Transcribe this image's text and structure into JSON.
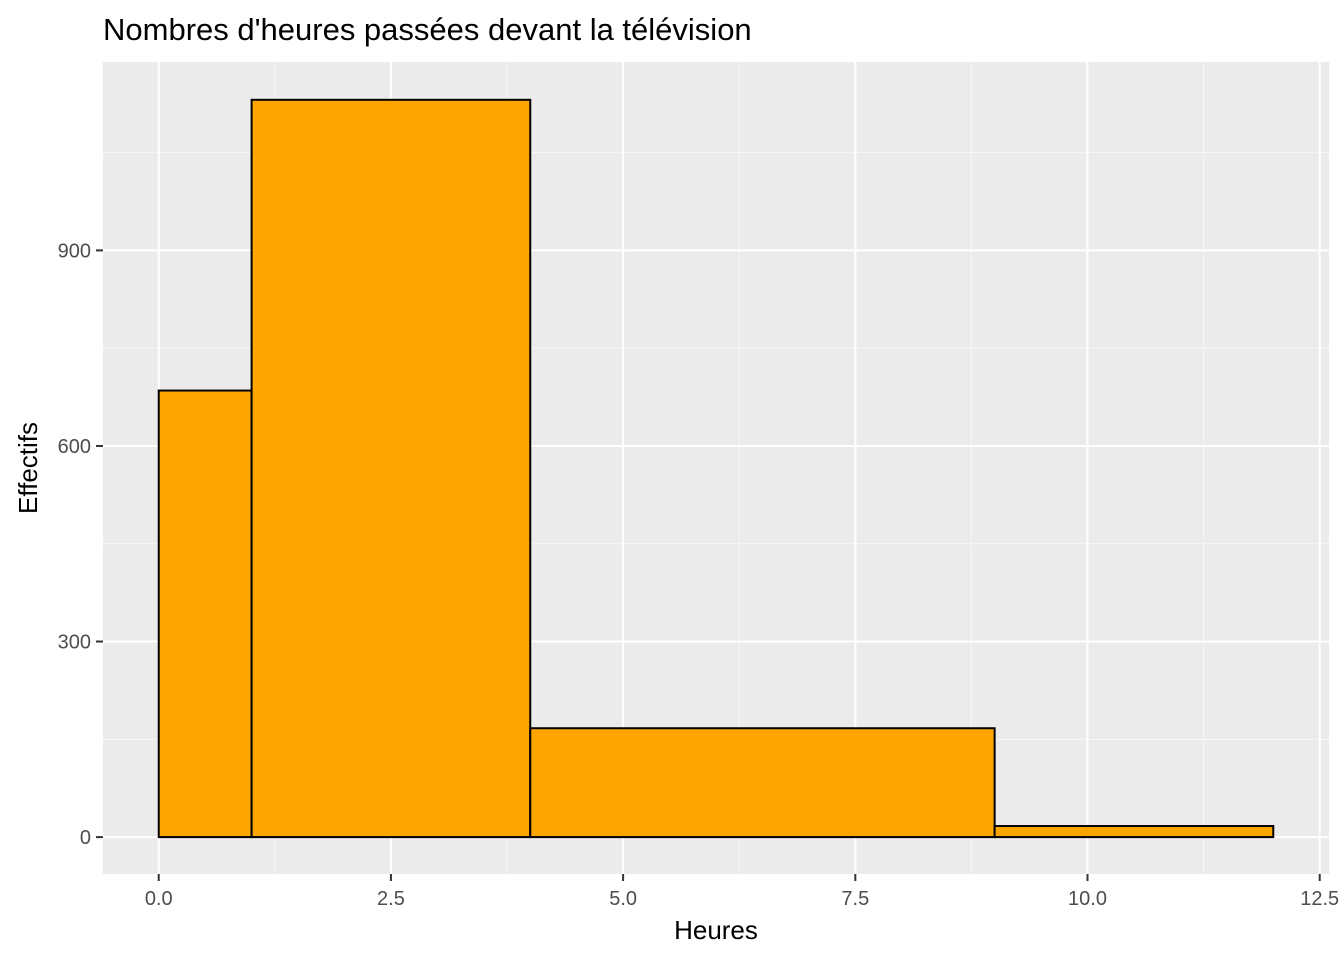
{
  "chart_data": {
    "type": "bar",
    "title": "Nombres d'heures passées devant la télévision",
    "xlabel": "Heures",
    "ylabel": "Effectifs",
    "xlim": [
      -0.6,
      12.6
    ],
    "ylim": [
      -56.6,
      1189
    ],
    "x_ticks": [
      0,
      2.5,
      5,
      7.5,
      10,
      12.5
    ],
    "x_tick_labels": [
      "0.0",
      "2.5",
      "5.0",
      "7.5",
      "10.0",
      "12.5"
    ],
    "y_ticks": [
      0,
      300,
      600,
      900
    ],
    "y_tick_labels": [
      "0",
      "300",
      "600",
      "900"
    ],
    "grid": true,
    "bins": [
      {
        "start": 0,
        "end": 1,
        "value": 685
      },
      {
        "start": 1,
        "end": 4,
        "value": 1131
      },
      {
        "start": 4,
        "end": 9,
        "value": 167
      },
      {
        "start": 9,
        "end": 12,
        "value": 17
      }
    ],
    "colors": {
      "bar_fill": "#FFA500",
      "bar_stroke": "#000000",
      "panel_background": "#EBEBEB",
      "grid_major": "#FFFFFF",
      "grid_minor": "#F7F7F7",
      "tick_text": "#4D4D4D"
    }
  }
}
